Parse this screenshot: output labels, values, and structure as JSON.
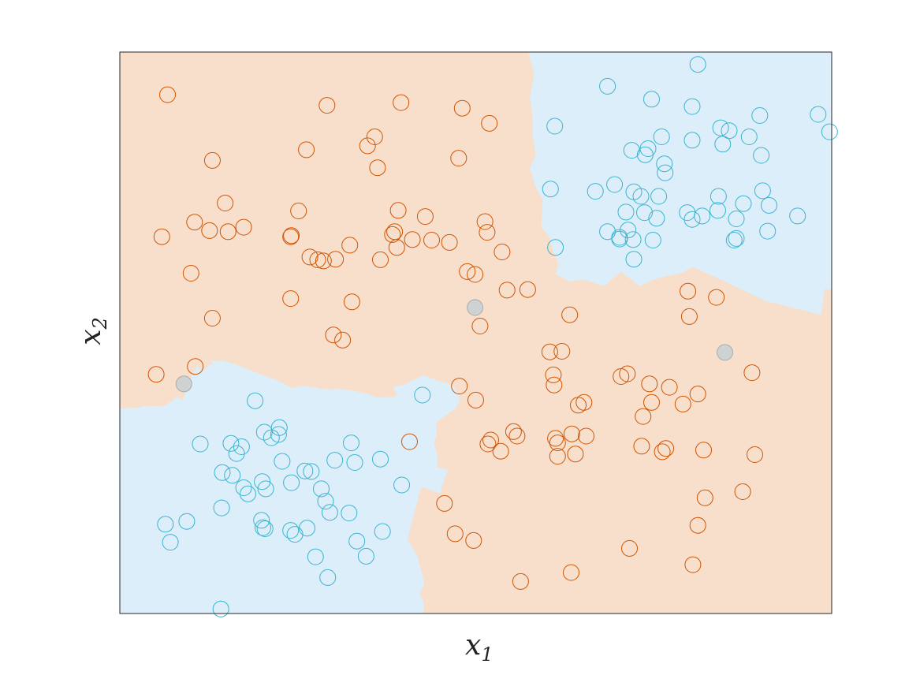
{
  "chart_data": {
    "type": "scatter",
    "title": "",
    "xlabel_base": "x",
    "xlabel_sub": "1",
    "ylabel_base": "x",
    "ylabel_sub": "2",
    "xlim": [
      0,
      100
    ],
    "ylim": [
      0,
      100
    ],
    "grid": false,
    "ticks_visible": false,
    "region_colors": {
      "orange_class": "#f7dfcc",
      "blue_class": "#dbeefa"
    },
    "point_colors": {
      "orange_class": "#d35400",
      "blue_class": "#3cb4cf",
      "misclassified_fill": "#cfd2d3",
      "misclassified_stroke": "#a8acae"
    },
    "decision_regions": [
      {
        "class": "blue",
        "polygon": [
          [
            57.4,
            100
          ],
          [
            100,
            100
          ],
          [
            100,
            57.6
          ],
          [
            99.0,
            57.8
          ],
          [
            98.5,
            53.2
          ],
          [
            90.6,
            55.7
          ],
          [
            84.6,
            59.4
          ],
          [
            80.5,
            61.7
          ],
          [
            79.0,
            60.7
          ],
          [
            75.2,
            59.6
          ],
          [
            73.0,
            58.3
          ],
          [
            70.4,
            60.9
          ],
          [
            68.0,
            58.3
          ],
          [
            65.4,
            59.4
          ],
          [
            64.2,
            59.4
          ],
          [
            63.2,
            59.1
          ],
          [
            61.2,
            60.5
          ],
          [
            61.6,
            62.4
          ],
          [
            60.8,
            64.8
          ],
          [
            60.2,
            67.4
          ],
          [
            59.2,
            68.8
          ],
          [
            59.4,
            73.7
          ],
          [
            58.4,
            76.0
          ],
          [
            57.6,
            79.3
          ],
          [
            58.4,
            81.6
          ],
          [
            58.0,
            85.4
          ],
          [
            58.0,
            88.4
          ],
          [
            57.6,
            92.0
          ],
          [
            58.2,
            96.0
          ]
        ]
      },
      {
        "class": "blue",
        "polygon": [
          [
            0,
            0
          ],
          [
            42.7,
            0
          ],
          [
            42.7,
            2.0
          ],
          [
            42.1,
            3.5
          ],
          [
            42.8,
            5.3
          ],
          [
            41.8,
            10.2
          ],
          [
            40.4,
            13.2
          ],
          [
            40.8,
            15.3
          ],
          [
            42.0,
            21.0
          ],
          [
            42.4,
            22.6
          ],
          [
            43.6,
            22.0
          ],
          [
            45.0,
            21.4
          ],
          [
            45.4,
            23.3
          ],
          [
            46.1,
            25.7
          ],
          [
            44.6,
            26.0
          ],
          [
            44.6,
            28.4
          ],
          [
            44.1,
            30.4
          ],
          [
            44.5,
            31.6
          ],
          [
            44.4,
            34.0
          ],
          [
            47.2,
            36.6
          ],
          [
            47.8,
            38.0
          ],
          [
            46.8,
            40.6
          ],
          [
            42.6,
            42.4
          ],
          [
            39.6,
            40.6
          ],
          [
            38.4,
            40.4
          ],
          [
            38.6,
            39.8
          ],
          [
            38.9,
            39.0
          ],
          [
            38.6,
            38.6
          ],
          [
            36.0,
            38.5
          ],
          [
            35.0,
            39.0
          ],
          [
            33.1,
            39.6
          ],
          [
            31.5,
            39.9
          ],
          [
            30.6,
            40.0
          ],
          [
            29.8,
            39.9
          ],
          [
            28.2,
            40.0
          ],
          [
            27.8,
            40.2
          ],
          [
            25.8,
            40.5
          ],
          [
            24.1,
            40.2
          ],
          [
            21.8,
            41.7
          ],
          [
            20.2,
            42.4
          ],
          [
            16.2,
            44.4
          ],
          [
            14.1,
            45.1
          ],
          [
            13.6,
            44.9
          ],
          [
            12.7,
            45.2
          ],
          [
            13.3,
            44.1
          ],
          [
            14.1,
            45.2
          ],
          [
            12.7,
            44.4
          ],
          [
            12.0,
            43.5
          ],
          [
            11.3,
            43.3
          ],
          [
            10.9,
            44.0
          ],
          [
            10.1,
            42.4
          ],
          [
            9.9,
            41.7
          ],
          [
            9.3,
            39.7
          ],
          [
            8.8,
            38.0
          ],
          [
            8.1,
            38.6
          ],
          [
            7.1,
            37.7
          ],
          [
            6.1,
            36.9
          ],
          [
            3.4,
            37.0
          ],
          [
            2.6,
            36.7
          ],
          [
            0,
            36.5
          ]
        ]
      }
    ],
    "series": [
      {
        "class": "orange",
        "points": [
          [
            6.7,
            92.4
          ],
          [
            29.1,
            90.5
          ],
          [
            39.5,
            91.0
          ],
          [
            48.1,
            90.0
          ],
          [
            51.9,
            87.3
          ],
          [
            26.2,
            82.6
          ],
          [
            34.8,
            83.3
          ],
          [
            35.8,
            84.9
          ],
          [
            13.0,
            80.7
          ],
          [
            36.2,
            79.4
          ],
          [
            47.6,
            81.1
          ],
          [
            14.8,
            73.1
          ],
          [
            25.1,
            71.7
          ],
          [
            39.1,
            71.8
          ],
          [
            10.5,
            69.7
          ],
          [
            17.4,
            68.8
          ],
          [
            12.6,
            68.2
          ],
          [
            15.2,
            68.0
          ],
          [
            5.9,
            67.1
          ],
          [
            24.1,
            67.3
          ],
          [
            38.6,
            68.0
          ],
          [
            42.9,
            70.7
          ],
          [
            51.3,
            69.8
          ],
          [
            51.6,
            67.9
          ],
          [
            24.0,
            67.1
          ],
          [
            38.3,
            67.5
          ],
          [
            41.1,
            66.6
          ],
          [
            43.8,
            66.5
          ],
          [
            46.3,
            66.1
          ],
          [
            32.3,
            65.6
          ],
          [
            38.9,
            65.2
          ],
          [
            26.7,
            63.5
          ],
          [
            27.8,
            63.0
          ],
          [
            28.6,
            62.8
          ],
          [
            30.3,
            63.1
          ],
          [
            36.6,
            63.0
          ],
          [
            53.7,
            64.4
          ],
          [
            48.8,
            60.9
          ],
          [
            49.9,
            60.4
          ],
          [
            54.4,
            57.6
          ],
          [
            57.3,
            57.7
          ],
          [
            10.0,
            60.6
          ],
          [
            24.0,
            56.1
          ],
          [
            32.6,
            55.5
          ],
          [
            63.2,
            53.2
          ],
          [
            79.8,
            57.4
          ],
          [
            83.8,
            56.3
          ],
          [
            80.0,
            52.9
          ],
          [
            13.0,
            52.6
          ],
          [
            50.6,
            51.2
          ],
          [
            30.0,
            49.6
          ],
          [
            31.3,
            48.7
          ],
          [
            60.4,
            46.6
          ],
          [
            62.1,
            46.7
          ],
          [
            88.8,
            42.9
          ],
          [
            60.9,
            42.5
          ],
          [
            70.4,
            42.2
          ],
          [
            71.3,
            42.7
          ],
          [
            61.0,
            40.7
          ],
          [
            74.4,
            40.9
          ],
          [
            5.1,
            42.6
          ],
          [
            10.6,
            44.0
          ],
          [
            47.7,
            40.5
          ],
          [
            50.0,
            38.0
          ],
          [
            77.2,
            40.3
          ],
          [
            64.4,
            37.1
          ],
          [
            65.2,
            37.6
          ],
          [
            81.2,
            39.1
          ],
          [
            74.7,
            37.6
          ],
          [
            55.3,
            32.4
          ],
          [
            55.8,
            31.6
          ],
          [
            73.5,
            35.1
          ],
          [
            63.5,
            32.0
          ],
          [
            65.5,
            31.6
          ],
          [
            61.2,
            31.2
          ],
          [
            61.5,
            30.4
          ],
          [
            52.1,
            30.9
          ],
          [
            51.7,
            30.2
          ],
          [
            40.7,
            30.6
          ],
          [
            53.5,
            28.9
          ],
          [
            61.5,
            28.0
          ],
          [
            64.0,
            28.4
          ],
          [
            82.0,
            29.1
          ],
          [
            76.7,
            29.4
          ],
          [
            73.3,
            29.8
          ],
          [
            76.2,
            28.8
          ],
          [
            89.2,
            28.3
          ],
          [
            87.5,
            21.7
          ],
          [
            79.1,
            37.3
          ],
          [
            45.6,
            19.6
          ],
          [
            82.2,
            20.6
          ],
          [
            47.1,
            14.2
          ],
          [
            49.7,
            13.0
          ],
          [
            81.2,
            15.7
          ],
          [
            71.6,
            11.6
          ],
          [
            56.3,
            5.7
          ],
          [
            63.4,
            7.3
          ],
          [
            80.5,
            8.7
          ]
        ]
      },
      {
        "class": "blue",
        "points": [
          [
            81.2,
            97.8
          ],
          [
            74.7,
            91.6
          ],
          [
            68.5,
            93.9
          ],
          [
            80.4,
            90.3
          ],
          [
            89.9,
            88.7
          ],
          [
            98.1,
            88.9
          ],
          [
            99.7,
            85.8
          ],
          [
            61.1,
            86.8
          ],
          [
            85.6,
            86.0
          ],
          [
            74.2,
            82.8
          ],
          [
            71.9,
            82.5
          ],
          [
            76.1,
            84.9
          ],
          [
            73.8,
            81.7
          ],
          [
            76.5,
            80.1
          ],
          [
            80.4,
            84.3
          ],
          [
            84.4,
            86.5
          ],
          [
            88.4,
            84.9
          ],
          [
            90.1,
            81.6
          ],
          [
            84.7,
            83.6
          ],
          [
            76.6,
            78.5
          ],
          [
            60.5,
            75.6
          ],
          [
            66.8,
            75.2
          ],
          [
            69.5,
            76.4
          ],
          [
            72.2,
            75.1
          ],
          [
            73.2,
            74.3
          ],
          [
            75.7,
            74.3
          ],
          [
            84.1,
            74.3
          ],
          [
            87.6,
            73.0
          ],
          [
            90.3,
            75.3
          ],
          [
            73.7,
            71.4
          ],
          [
            71.1,
            71.5
          ],
          [
            75.4,
            70.4
          ],
          [
            79.7,
            71.4
          ],
          [
            84.0,
            71.8
          ],
          [
            86.6,
            70.3
          ],
          [
            80.4,
            70.2
          ],
          [
            81.8,
            70.8
          ],
          [
            95.2,
            70.8
          ],
          [
            91.2,
            72.7
          ],
          [
            91.0,
            68.1
          ],
          [
            86.3,
            66.5
          ],
          [
            70.2,
            66.7
          ],
          [
            70.2,
            67.0
          ],
          [
            71.4,
            68.3
          ],
          [
            72.1,
            66.6
          ],
          [
            74.9,
            66.5
          ],
          [
            68.5,
            68.0
          ],
          [
            86.6,
            66.8
          ],
          [
            61.2,
            65.2
          ],
          [
            72.2,
            63.1
          ],
          [
            19.0,
            37.9
          ],
          [
            42.5,
            38.9
          ],
          [
            22.4,
            33.1
          ],
          [
            20.3,
            32.3
          ],
          [
            11.3,
            30.2
          ],
          [
            15.6,
            30.3
          ],
          [
            21.3,
            31.3
          ],
          [
            22.3,
            31.9
          ],
          [
            17.1,
            29.7
          ],
          [
            32.5,
            30.4
          ],
          [
            36.6,
            27.5
          ],
          [
            33.0,
            26.9
          ],
          [
            16.4,
            28.5
          ],
          [
            22.8,
            27.1
          ],
          [
            30.2,
            27.3
          ],
          [
            26.0,
            25.4
          ],
          [
            26.9,
            25.3
          ],
          [
            14.4,
            25.1
          ],
          [
            15.8,
            24.6
          ],
          [
            20.0,
            23.5
          ],
          [
            17.4,
            22.4
          ],
          [
            24.1,
            23.3
          ],
          [
            20.5,
            22.2
          ],
          [
            18.0,
            21.3
          ],
          [
            28.3,
            22.2
          ],
          [
            39.6,
            22.9
          ],
          [
            28.9,
            20.0
          ],
          [
            14.3,
            18.8
          ],
          [
            19.9,
            16.6
          ],
          [
            29.5,
            18.0
          ],
          [
            32.2,
            17.9
          ],
          [
            6.4,
            15.9
          ],
          [
            9.4,
            16.4
          ],
          [
            20.4,
            15.1
          ],
          [
            20.1,
            15.3
          ],
          [
            24.0,
            14.8
          ],
          [
            24.6,
            14.1
          ],
          [
            26.3,
            15.2
          ],
          [
            7.1,
            12.7
          ],
          [
            33.3,
            12.9
          ],
          [
            36.9,
            14.6
          ],
          [
            27.5,
            10.1
          ],
          [
            34.6,
            10.2
          ],
          [
            29.2,
            6.4
          ],
          [
            14.2,
            0.8
          ]
        ]
      },
      {
        "class": "misclassified",
        "points": [
          [
            49.9,
            54.5
          ],
          [
            85.0,
            46.5
          ],
          [
            9.0,
            40.9
          ]
        ]
      }
    ]
  }
}
